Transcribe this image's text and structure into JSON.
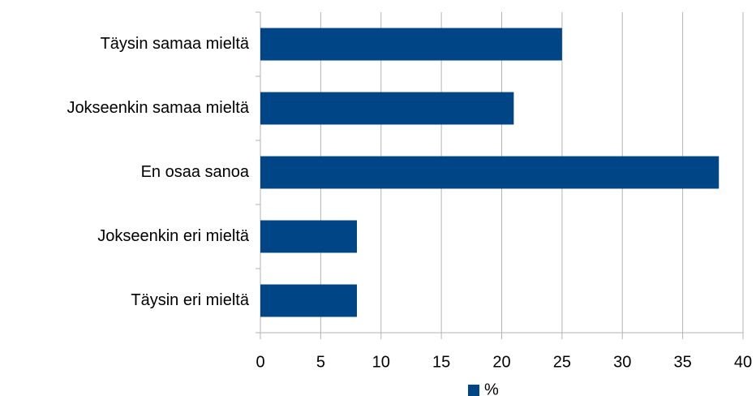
{
  "chart_data": {
    "type": "bar",
    "orientation": "horizontal",
    "categories": [
      "Täysin samaa mieltä",
      "Jokseenkin samaa mieltä",
      "En osaa sanoa",
      "Jokseenkin eri mieltä",
      "Täysin eri mieltä"
    ],
    "series": [
      {
        "name": "%",
        "color": "#004586",
        "values": [
          25,
          21,
          38,
          8,
          8
        ]
      }
    ],
    "xlim": [
      0,
      40
    ],
    "xticks": [
      0,
      5,
      10,
      15,
      20,
      25,
      30,
      35,
      40
    ],
    "grid": true,
    "legend": "bottom"
  }
}
